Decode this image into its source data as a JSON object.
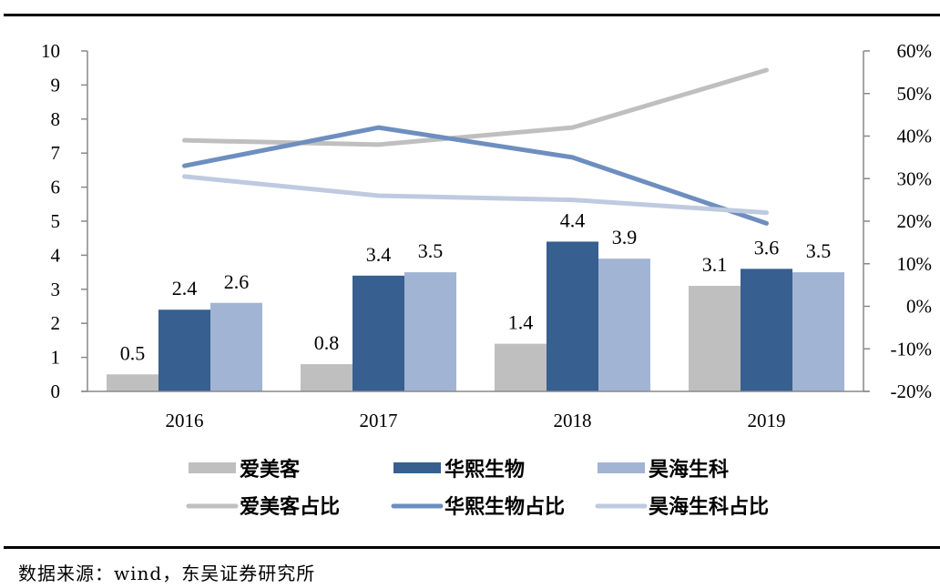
{
  "chart_data": {
    "type": "bar",
    "title": "",
    "xlabel": "",
    "ylabel": "",
    "categories": [
      "2016",
      "2017",
      "2018",
      "2019"
    ],
    "ylim": [
      0,
      10
    ],
    "y_ticks": [
      "0",
      "1",
      "2",
      "3",
      "4",
      "5",
      "6",
      "7",
      "8",
      "9",
      "10"
    ],
    "y2lim": [
      -20,
      60
    ],
    "y2_ticks": [
      "-20%",
      "-10%",
      "0%",
      "10%",
      "20%",
      "30%",
      "40%",
      "50%",
      "60%"
    ],
    "grid": false,
    "legend_position": "bottom",
    "series": [
      {
        "name": "爱美客",
        "kind": "bar",
        "axis": "left",
        "color": "#BFBFBF",
        "values": [
          0.5,
          0.8,
          1.4,
          3.1
        ],
        "labels": [
          "0.5",
          "0.8",
          "1.4",
          "3.1"
        ]
      },
      {
        "name": "华熙生物",
        "kind": "bar",
        "axis": "left",
        "color": "#375F8F",
        "values": [
          2.4,
          3.4,
          4.4,
          3.6
        ],
        "labels": [
          "2.4",
          "3.4",
          "4.4",
          "3.6"
        ]
      },
      {
        "name": "昊海生科",
        "kind": "bar",
        "axis": "left",
        "color": "#A2B4D4",
        "values": [
          2.6,
          3.5,
          3.9,
          3.5
        ],
        "labels": [
          "2.6",
          "3.5",
          "3.9",
          "3.5"
        ]
      },
      {
        "name": "爱美客占比",
        "kind": "line",
        "axis": "right",
        "color": "#BFBFBF",
        "values": [
          39,
          38,
          42,
          55.5
        ]
      },
      {
        "name": "华熙生物占比",
        "kind": "line",
        "axis": "right",
        "color": "#6D8EBF",
        "values": [
          33,
          42,
          35,
          19.5
        ]
      },
      {
        "name": "昊海生科占比",
        "kind": "line",
        "axis": "right",
        "color": "#BECADF",
        "values": [
          30.5,
          26,
          25,
          22
        ]
      }
    ]
  },
  "source": "数据来源：wind，东吴证券研究所"
}
